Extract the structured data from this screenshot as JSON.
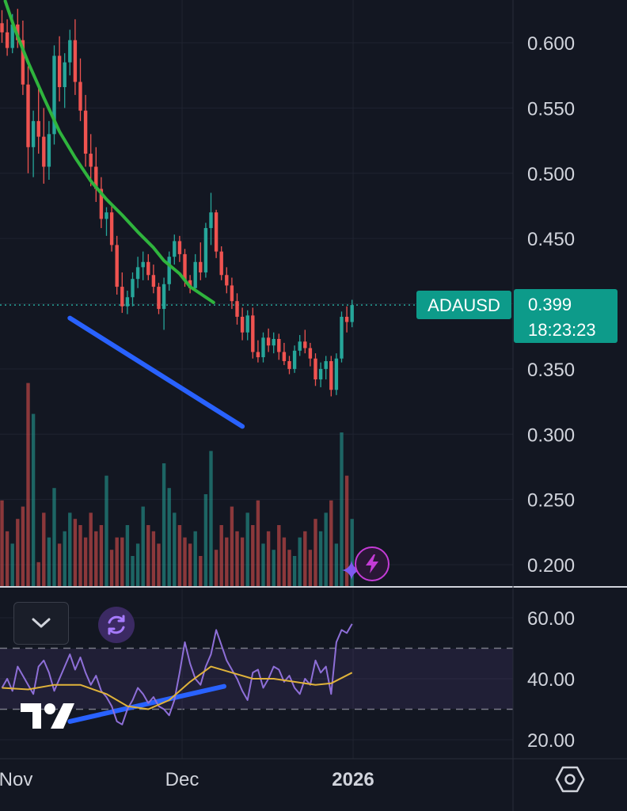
{
  "symbol": "ADAUSD",
  "price_tag": {
    "price": "0.399",
    "countdown": "18:23:23",
    "color": "#0d9b8a"
  },
  "colors": {
    "background": "#131722",
    "up": "#26a69a",
    "down": "#ef5350",
    "moving_average": "#2fb43d",
    "trendline": "#2962ff",
    "rsi": "#8e6fd8",
    "rsi_ma": "#e0b33a"
  },
  "icons": {
    "collapse": "chevron-down-icon",
    "sync": "sync-icon",
    "bolt": "lightning-bolt-icon",
    "sparkle": "sparkle-icon",
    "settings": "settings-hexagon-icon",
    "logo": "tradingview-logo"
  },
  "chart_data": {
    "type": "candlestick",
    "price_axis": {
      "ticks": [
        "0.600",
        "0.550",
        "0.500",
        "0.450",
        "0.400",
        "0.350",
        "0.300",
        "0.250",
        "0.200"
      ],
      "ylim": [
        0.182,
        0.625
      ]
    },
    "time_axis": {
      "ticks": [
        "Nov",
        "Dec",
        "2026"
      ]
    },
    "rsi_axis": {
      "ticks": [
        "60.00",
        "40.00",
        "20.00"
      ],
      "ylim": [
        16,
        66
      ]
    },
    "candles": [
      [
        0.615,
        0.625,
        0.6,
        0.608
      ],
      [
        0.608,
        0.618,
        0.59,
        0.596
      ],
      [
        0.596,
        0.622,
        0.592,
        0.614
      ],
      [
        0.614,
        0.626,
        0.596,
        0.602
      ],
      [
        0.602,
        0.617,
        0.56,
        0.568
      ],
      [
        0.568,
        0.582,
        0.5,
        0.52
      ],
      [
        0.52,
        0.548,
        0.497,
        0.54
      ],
      [
        0.54,
        0.566,
        0.515,
        0.528
      ],
      [
        0.528,
        0.55,
        0.492,
        0.505
      ],
      [
        0.505,
        0.54,
        0.495,
        0.53
      ],
      [
        0.53,
        0.598,
        0.522,
        0.59
      ],
      [
        0.59,
        0.605,
        0.555,
        0.566
      ],
      [
        0.566,
        0.592,
        0.55,
        0.585
      ],
      [
        0.585,
        0.61,
        0.575,
        0.602
      ],
      [
        0.602,
        0.618,
        0.56,
        0.57
      ],
      [
        0.57,
        0.588,
        0.54,
        0.548
      ],
      [
        0.548,
        0.56,
        0.505,
        0.515
      ],
      [
        0.515,
        0.53,
        0.49,
        0.505
      ],
      [
        0.505,
        0.52,
        0.478,
        0.488
      ],
      [
        0.488,
        0.497,
        0.458,
        0.465
      ],
      [
        0.465,
        0.474,
        0.452,
        0.47
      ],
      [
        0.47,
        0.476,
        0.44,
        0.445
      ],
      [
        0.445,
        0.452,
        0.407,
        0.413
      ],
      [
        0.413,
        0.424,
        0.393,
        0.398
      ],
      [
        0.398,
        0.41,
        0.392,
        0.405
      ],
      [
        0.405,
        0.424,
        0.398,
        0.419
      ],
      [
        0.419,
        0.436,
        0.412,
        0.428
      ],
      [
        0.428,
        0.44,
        0.418,
        0.432
      ],
      [
        0.432,
        0.438,
        0.418,
        0.422
      ],
      [
        0.422,
        0.43,
        0.408,
        0.413
      ],
      [
        0.413,
        0.416,
        0.392,
        0.396
      ],
      [
        0.396,
        0.42,
        0.38,
        0.415
      ],
      [
        0.415,
        0.44,
        0.41,
        0.436
      ],
      [
        0.436,
        0.453,
        0.43,
        0.448
      ],
      [
        0.448,
        0.452,
        0.432,
        0.438
      ],
      [
        0.438,
        0.442,
        0.413,
        0.418
      ],
      [
        0.418,
        0.422,
        0.408,
        0.412
      ],
      [
        0.412,
        0.438,
        0.41,
        0.432
      ],
      [
        0.432,
        0.447,
        0.418,
        0.424
      ],
      [
        0.424,
        0.462,
        0.42,
        0.458
      ],
      [
        0.458,
        0.485,
        0.445,
        0.47
      ],
      [
        0.47,
        0.472,
        0.435,
        0.44
      ],
      [
        0.44,
        0.444,
        0.418,
        0.422
      ],
      [
        0.422,
        0.428,
        0.408,
        0.414
      ],
      [
        0.414,
        0.42,
        0.396,
        0.402
      ],
      [
        0.402,
        0.408,
        0.384,
        0.39
      ],
      [
        0.39,
        0.397,
        0.372,
        0.378
      ],
      [
        0.378,
        0.395,
        0.372,
        0.391
      ],
      [
        0.391,
        0.397,
        0.358,
        0.363
      ],
      [
        0.363,
        0.372,
        0.355,
        0.359
      ],
      [
        0.359,
        0.378,
        0.355,
        0.374
      ],
      [
        0.374,
        0.381,
        0.363,
        0.368
      ],
      [
        0.368,
        0.378,
        0.362,
        0.373
      ],
      [
        0.373,
        0.377,
        0.357,
        0.363
      ],
      [
        0.363,
        0.37,
        0.353,
        0.356
      ],
      [
        0.356,
        0.36,
        0.346,
        0.35
      ],
      [
        0.35,
        0.368,
        0.347,
        0.364
      ],
      [
        0.364,
        0.376,
        0.36,
        0.371
      ],
      [
        0.371,
        0.38,
        0.362,
        0.366
      ],
      [
        0.366,
        0.37,
        0.352,
        0.358
      ],
      [
        0.358,
        0.362,
        0.337,
        0.342
      ],
      [
        0.342,
        0.355,
        0.336,
        0.35
      ],
      [
        0.35,
        0.36,
        0.342,
        0.356
      ],
      [
        0.356,
        0.36,
        0.329,
        0.334
      ],
      [
        0.334,
        0.362,
        0.33,
        0.358
      ],
      [
        0.358,
        0.394,
        0.355,
        0.39
      ],
      [
        0.39,
        0.398,
        0.378,
        0.386
      ],
      [
        0.386,
        0.403,
        0.382,
        0.399
      ]
    ],
    "volume": [
      14,
      9,
      7,
      11,
      13,
      33,
      28,
      4,
      12,
      8,
      16,
      7,
      9,
      12,
      11,
      10,
      8,
      12,
      9,
      10,
      18,
      6,
      8,
      8,
      10,
      5,
      7,
      13,
      10,
      9,
      7,
      20,
      16,
      12,
      10,
      8,
      7,
      9,
      5,
      15,
      22,
      6,
      10,
      8,
      13,
      9,
      8,
      12,
      10,
      14,
      7,
      9,
      6,
      10,
      8,
      6,
      5,
      8,
      9,
      6,
      11,
      9,
      12,
      14,
      7,
      25,
      18,
      11
    ],
    "moving_average": [
      [
        0.626,
        0.632
      ],
      [
        2.5,
        0.61
      ],
      [
        5,
        0.585
      ],
      [
        8,
        0.558
      ],
      [
        11,
        0.532
      ],
      [
        14,
        0.512
      ],
      [
        17,
        0.494
      ],
      [
        20,
        0.48
      ],
      [
        23,
        0.468
      ],
      [
        26,
        0.455
      ],
      [
        29,
        0.443
      ],
      [
        31,
        0.433
      ],
      [
        34,
        0.423
      ],
      [
        36,
        0.413
      ],
      [
        39,
        0.405
      ],
      [
        40.5,
        0.401
      ]
    ],
    "rsi": [
      37,
      40,
      36,
      44,
      41,
      38,
      35,
      44,
      46,
      42,
      36,
      40,
      44,
      48,
      43,
      47,
      42,
      38,
      41,
      36,
      34,
      31,
      26,
      25,
      30,
      33,
      37,
      35,
      32,
      34,
      31,
      30,
      28,
      33,
      42,
      52,
      45,
      40,
      38,
      44,
      48,
      56,
      51,
      46,
      43,
      40,
      36,
      33,
      42,
      43,
      37,
      40,
      44,
      43,
      39,
      41,
      37,
      35,
      40,
      38,
      46,
      42,
      44,
      35,
      52,
      56,
      55,
      58
    ],
    "rsi_ma": [
      [
        0,
        37
      ],
      [
        5,
        36.5
      ],
      [
        10,
        38
      ],
      [
        15,
        38
      ],
      [
        20,
        35
      ],
      [
        24,
        31
      ],
      [
        28,
        30
      ],
      [
        32,
        33
      ],
      [
        36,
        39
      ],
      [
        40,
        44
      ],
      [
        44,
        42
      ],
      [
        48,
        40
      ],
      [
        52,
        40
      ],
      [
        56,
        39
      ],
      [
        60,
        38
      ],
      [
        63,
        38.5
      ],
      [
        67,
        42
      ]
    ],
    "trendlines": [
      {
        "pane": "price",
        "from": [
          13,
          0.389
        ],
        "to": [
          46,
          0.306
        ]
      },
      {
        "pane": "rsi",
        "from": [
          13,
          26
        ],
        "to": [
          42.5,
          37.5
        ]
      }
    ],
    "current_price_line": 0.399,
    "rsi_guides": [
      50,
      30
    ]
  }
}
